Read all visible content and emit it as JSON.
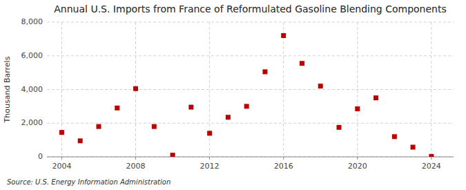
{
  "chart_data": {
    "type": "scatter",
    "title": "Annual U.S. Imports from France of Reformulated Gasoline Blending Components",
    "ylabel": "Thousand Barrels",
    "annotations": [
      "Source: U.S. Energy Information Administration"
    ],
    "x": [
      2004,
      2005,
      2006,
      2007,
      2008,
      2009,
      2010,
      2011,
      2012,
      2013,
      2014,
      2015,
      2016,
      2017,
      2018,
      2019,
      2020,
      2021,
      2022,
      2023,
      2024
    ],
    "values": [
      1450,
      950,
      1800,
      2900,
      4050,
      1800,
      100,
      2950,
      1400,
      2350,
      3000,
      5050,
      7200,
      5550,
      4200,
      1750,
      2850,
      3500,
      1200,
      575,
      25
    ],
    "color": "#bb0000",
    "marker": "square",
    "xlim": [
      2003.2,
      2025.2
    ],
    "ylim": [
      0,
      8000
    ],
    "xticks": [
      2004,
      2008,
      2012,
      2016,
      2020,
      2024
    ],
    "yticks": [
      0,
      {
        "value": 2000,
        "label": "2,000"
      },
      {
        "value": 4000,
        "label": "4,000"
      },
      {
        "value": 6000,
        "label": "6,000"
      },
      {
        "value": 8000,
        "label": "8,000"
      }
    ],
    "grid": true
  }
}
